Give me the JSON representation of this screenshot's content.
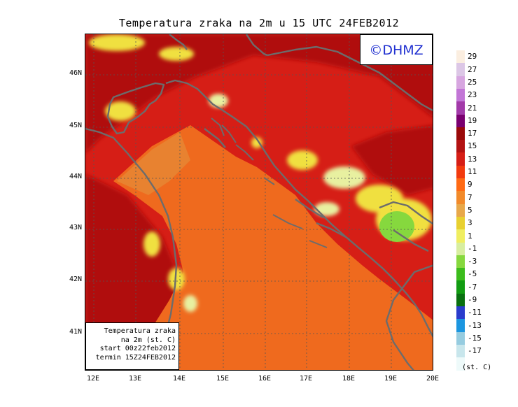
{
  "title": "Temperatura zraka na 2m u 15 UTC 24FEB2012",
  "logo": "©DHMZ",
  "info": {
    "line1": "Temperatura zraka",
    "line2": "na 2m (st. C)",
    "line3": "start 00z22feb2012",
    "line4": "termin 15Z24FEB2012"
  },
  "lat_labels": [
    "46N",
    "45N",
    "44N",
    "43N",
    "42N",
    "41N"
  ],
  "lon_labels": [
    "12E",
    "13E",
    "14E",
    "15E",
    "16E",
    "17E",
    "18E",
    "19E",
    "20E"
  ],
  "colorbar": {
    "unit": "(st. C)",
    "labels": [
      "29",
      "27",
      "25",
      "23",
      "21",
      "19",
      "17",
      "15",
      "13",
      "11",
      "9",
      "7",
      "5",
      "3",
      "1",
      "-1",
      "-3",
      "-5",
      "-7",
      "-9",
      "-11",
      "-13",
      "-15",
      "-17"
    ],
    "colors": [
      "#fbeee0",
      "#dcc7e6",
      "#d7a6e0",
      "#c276d6",
      "#a23aa9",
      "#7a0070",
      "#9a0a0a",
      "#b31212",
      "#d61e16",
      "#f23a0e",
      "#ff6a14",
      "#f28a2a",
      "#e8a84a",
      "#e8d030",
      "#f0ee60",
      "#d8eea0",
      "#86d83e",
      "#3cbc1c",
      "#129c12",
      "#0a7010",
      "#2a3ccc",
      "#1c96e0",
      "#96cce0",
      "#c8e6ec",
      "#eefafa"
    ]
  },
  "colors": {
    "sea": "#ef6a1e",
    "sea_warm": "#e88230",
    "land": "#d61e16",
    "land_warm": "#b01010",
    "mountain": "#f0e040",
    "mountain_pale": "#e8f0a0",
    "cold": "#86d83e",
    "coast": "#6c6c6c"
  }
}
